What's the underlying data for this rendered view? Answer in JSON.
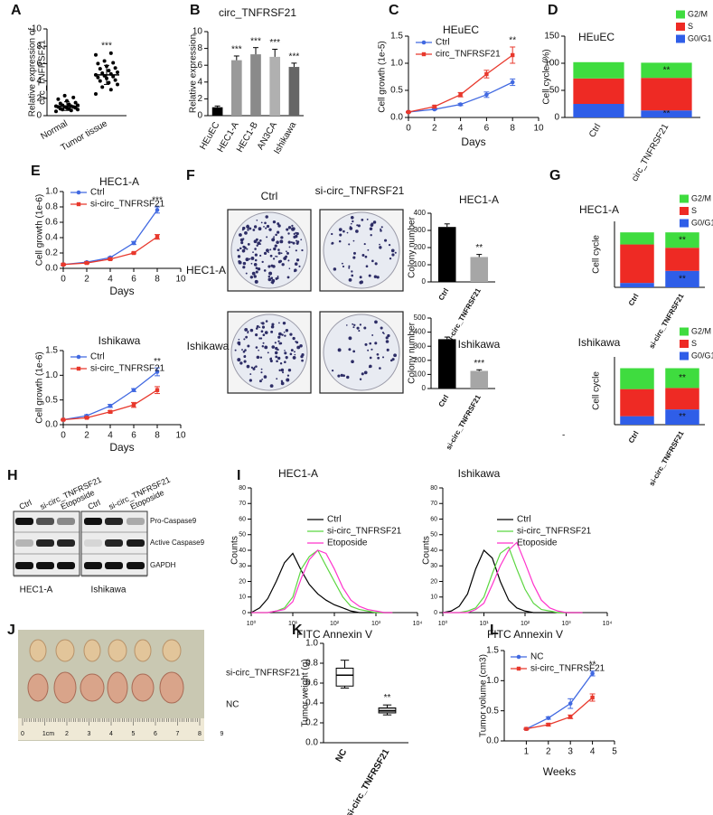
{
  "panel_labels": [
    "A",
    "B",
    "C",
    "D",
    "E",
    "F",
    "G",
    "H",
    "I",
    "J",
    "K",
    "L"
  ],
  "colony_assay": {
    "columns": [
      "Ctrl",
      "si-circ_TNFRSF21"
    ],
    "rows": [
      "HEC1-A",
      "Ishikawa"
    ]
  },
  "western_blot": {
    "lanes": [
      "Ctrl",
      "si-circ_TNFRSF21",
      "Etoposide"
    ],
    "proteins": [
      "Pro-Caspase9",
      "Active Caspase9",
      "GAPDH"
    ],
    "cell_lines": [
      "HEC1-A",
      "Ishikawa"
    ]
  },
  "xenograft": {
    "groups": [
      "si-circ_TNFRSF21",
      "NC"
    ],
    "ruler_labels": [
      "0",
      "1cm",
      "2",
      "3",
      "4",
      "5",
      "6",
      "7",
      "8",
      "9"
    ]
  },
  "cell_cycle_note": "-",
  "chart_data": [
    {
      "type": "strip",
      "categories": [
        "Normal",
        "Tumor tissue"
      ],
      "values": [
        [
          0.5,
          0.6,
          0.7,
          0.7,
          0.8,
          0.8,
          0.9,
          0.9,
          1.0,
          1.0,
          1.0,
          1.1,
          1.1,
          1.2,
          1.2,
          1.3,
          1.4,
          1.5,
          1.7,
          1.9,
          2.1,
          2.3
        ],
        [
          2.5,
          3.0,
          3.3,
          3.6,
          3.8,
          4.0,
          4.1,
          4.3,
          4.4,
          4.5,
          4.6,
          4.7,
          4.8,
          4.9,
          5.0,
          5.2,
          5.4,
          5.5,
          5.7,
          6.0,
          6.1,
          6.3,
          7.0,
          7.2
        ]
      ],
      "means": [
        1.1,
        4.7
      ],
      "sd": [
        0.5,
        1.1
      ],
      "color": "#000000",
      "significance": [
        null,
        "***"
      ],
      "ylabel": [
        "Relative expression of",
        "circ_TNFRSF21"
      ],
      "ylim": [
        0,
        10
      ],
      "yticks": [
        0,
        2,
        4,
        6,
        8,
        10
      ]
    },
    {
      "type": "bar",
      "title": "circ_TNFRSF21",
      "categories": [
        "HEuEC",
        "HEC1-A",
        "HEC1-B",
        "AN3CA",
        "Ishikawa"
      ],
      "values": [
        1.0,
        6.6,
        7.3,
        7.0,
        5.8
      ],
      "errors": [
        0.15,
        0.5,
        0.8,
        0.9,
        0.45
      ],
      "colors": [
        "#000000",
        "#9a9a9a",
        "#8a8a8a",
        "#b0b0b0",
        "#666666"
      ],
      "significance": [
        null,
        "***",
        "***",
        "***",
        "***"
      ],
      "ylabel": "Relative  expression",
      "ylim": [
        0,
        10
      ],
      "yticks": [
        0,
        2,
        4,
        6,
        8,
        10
      ]
    },
    {
      "type": "line",
      "title": "HEuEC",
      "x": [
        0,
        2,
        4,
        6,
        8
      ],
      "series": [
        {
          "name": "Ctrl",
          "color": "#4169e1",
          "marker": "circle",
          "values": [
            0.1,
            0.15,
            0.24,
            0.42,
            0.65
          ],
          "errors": [
            0.01,
            0.01,
            0.02,
            0.05,
            0.06
          ]
        },
        {
          "name": "circ_TNFRSF21",
          "color": "#e8382c",
          "marker": "square",
          "values": [
            0.1,
            0.2,
            0.42,
            0.8,
            1.15
          ],
          "errors": [
            0.01,
            0.02,
            0.04,
            0.07,
            0.15
          ]
        }
      ],
      "significance": "**",
      "xlabel": "Days",
      "ylabel": "Cell growth (1e-5)",
      "xlim": [
        0,
        10
      ],
      "xticks": [
        0,
        2,
        4,
        6,
        8,
        10
      ],
      "ylim": [
        0,
        1.5
      ],
      "yticks": [
        {
          "value": 0,
          "label": "0.0"
        },
        0.5,
        {
          "value": 1,
          "label": "1.0"
        },
        1.5
      ]
    },
    {
      "type": "stacked_bar",
      "title": "HEuEC",
      "categories": [
        "Ctrl",
        "circ_TNFRSF21"
      ],
      "series": [
        {
          "name": "G0/G1",
          "color": "#2f5ee8",
          "values": [
            25,
            13
          ],
          "significance": [
            null,
            "**"
          ]
        },
        {
          "name": "S",
          "color": "#ee2a24",
          "values": [
            47,
            60
          ]
        },
        {
          "name": "G2/M",
          "color": "#3fdc3f",
          "values": [
            30,
            28
          ],
          "significance": [
            null,
            "**"
          ]
        }
      ],
      "ylabel": "Cell cycle (%)",
      "ylim": [
        0,
        150
      ],
      "yticks": [
        0,
        50,
        100,
        150
      ]
    },
    {
      "type": "line",
      "title": "HEC1-A",
      "x": [
        0,
        2,
        4,
        6,
        8
      ],
      "series": [
        {
          "name": "Ctrl",
          "color": "#4169e1",
          "marker": "circle",
          "values": [
            0.05,
            0.08,
            0.14,
            0.33,
            0.76
          ],
          "errors": [
            0.01,
            0.01,
            0.01,
            0.02,
            0.04
          ]
        },
        {
          "name": "si-circ_TNFRSF21",
          "color": "#e8382c",
          "marker": "square",
          "values": [
            0.05,
            0.07,
            0.12,
            0.2,
            0.41
          ],
          "errors": [
            0.01,
            0.01,
            0.01,
            0.01,
            0.03
          ]
        }
      ],
      "significance": "***",
      "xlabel": "Days",
      "ylabel": "Cell growth (1e-6)",
      "xlim": [
        0,
        10
      ],
      "xticks": [
        0,
        2,
        4,
        6,
        8,
        10
      ],
      "ylim": [
        0,
        1
      ],
      "yticks": [
        {
          "value": 0,
          "label": "0.0"
        },
        0.2,
        0.4,
        0.6,
        0.8,
        {
          "value": 1,
          "label": "1.0"
        }
      ]
    },
    {
      "type": "line",
      "title": "Ishikawa",
      "x": [
        0,
        2,
        4,
        6,
        8
      ],
      "series": [
        {
          "name": "Ctrl",
          "color": "#4169e1",
          "marker": "circle",
          "values": [
            0.1,
            0.18,
            0.38,
            0.7,
            1.07
          ],
          "errors": [
            0.01,
            0.02,
            0.03,
            0.03,
            0.08
          ]
        },
        {
          "name": "si-circ_TNFRSF21",
          "color": "#e8382c",
          "marker": "square",
          "values": [
            0.1,
            0.14,
            0.26,
            0.4,
            0.7
          ],
          "errors": [
            0.01,
            0.01,
            0.02,
            0.05,
            0.07
          ]
        }
      ],
      "significance": "**",
      "xlabel": "Days",
      "ylabel": "Cell growth (1e-6)",
      "xlim": [
        0,
        10
      ],
      "xticks": [
        0,
        2,
        4,
        6,
        8,
        10
      ],
      "ylim": [
        0,
        1.5
      ],
      "yticks": [
        {
          "value": 0,
          "label": "0.0"
        },
        0.5,
        {
          "value": 1,
          "label": "1.0"
        },
        1.5
      ]
    },
    {
      "type": "bar",
      "title": "HEC1-A",
      "categories": [
        "Ctrl",
        "si-circ_TNFRSF21"
      ],
      "values": [
        320,
        145
      ],
      "errors": [
        18,
        15
      ],
      "colors": [
        "#000000",
        "#a6a6a6"
      ],
      "significance": [
        null,
        "**"
      ],
      "ylabel": "Colony number",
      "ylim": [
        0,
        400
      ],
      "yticks": [
        0,
        100,
        200,
        300,
        400
      ]
    },
    {
      "type": "bar",
      "title": "Ishikawa",
      "categories": [
        "Ctrl",
        "si-circ_TNFRSF21"
      ],
      "values": [
        350,
        125
      ],
      "errors": [
        15,
        8
      ],
      "colors": [
        "#000000",
        "#a6a6a6"
      ],
      "significance": [
        null,
        "***"
      ],
      "ylabel": "Colony number",
      "ylim": [
        0,
        500
      ],
      "yticks": [
        0,
        100,
        200,
        300,
        400,
        500
      ]
    },
    {
      "type": "stacked_bar",
      "title": "HEC1-A",
      "categories": [
        "Ctrl",
        "si-circ_TNFRSF21"
      ],
      "series": [
        {
          "name": "G0/G1",
          "color": "#2f5ee8",
          "values": [
            8,
            30
          ],
          "significance": [
            null,
            "**"
          ]
        },
        {
          "name": "S",
          "color": "#ee2a24",
          "values": [
            70,
            42
          ]
        },
        {
          "name": "G2/M",
          "color": "#3fdc3f",
          "values": [
            22,
            28
          ],
          "significance": [
            null,
            "**"
          ]
        }
      ],
      "ylabel": "Cell cycle",
      "ylim": [
        0,
        120
      ]
    },
    {
      "type": "stacked_bar",
      "title": "Ishikawa",
      "categories": [
        "Ctrl",
        "si-circ_TNFRSF21"
      ],
      "series": [
        {
          "name": "G0/G1",
          "color": "#2f5ee8",
          "values": [
            15,
            27
          ],
          "significance": [
            null,
            "**"
          ]
        },
        {
          "name": "S",
          "color": "#ee2a24",
          "values": [
            48,
            38
          ]
        },
        {
          "name": "G2/M",
          "color": "#3fdc3f",
          "values": [
            37,
            35
          ],
          "significance": [
            null,
            "**"
          ]
        }
      ],
      "ylabel": "Cell cycle",
      "ylim": [
        0,
        120
      ]
    },
    {
      "type": "line",
      "xscale": "log",
      "title": "HEC1-A",
      "x": [
        1,
        1.6,
        2.5,
        4,
        6.3,
        10,
        16,
        25,
        40,
        63,
        100,
        160,
        250,
        400,
        630,
        1000,
        1600,
        2500
      ],
      "series": [
        {
          "name": "Ctrl",
          "color": "#000000",
          "values": [
            0,
            3,
            9,
            20,
            32,
            38,
            27,
            18,
            12,
            8,
            5,
            3,
            1,
            0,
            0,
            0,
            0,
            0
          ]
        },
        {
          "name": "si-circ_TNFRSF21",
          "color": "#5bd640",
          "values": [
            0,
            0,
            0,
            1,
            3,
            10,
            28,
            36,
            40,
            30,
            20,
            10,
            4,
            2,
            1,
            0,
            0,
            0
          ]
        },
        {
          "name": "Etoposide",
          "color": "#ff33cc",
          "values": [
            0,
            0,
            0,
            1,
            2,
            7,
            22,
            34,
            40,
            38,
            28,
            16,
            8,
            4,
            2,
            1,
            0,
            0
          ]
        }
      ],
      "xlabel": "FITC Annexin V",
      "ylabel": "Counts",
      "xlim": [
        1,
        10000
      ],
      "xticks": [
        {
          "value": 1,
          "label": "10⁰"
        },
        {
          "value": 10,
          "label": "10¹"
        },
        {
          "value": 100,
          "label": "10²"
        },
        {
          "value": 1000,
          "label": "10³"
        },
        {
          "value": 10000,
          "label": "10⁴"
        }
      ],
      "ylim": [
        0,
        80
      ],
      "yticks": [
        0,
        10,
        20,
        30,
        40,
        50,
        60,
        70,
        80
      ]
    },
    {
      "type": "line",
      "xscale": "log",
      "title": "Ishikawa",
      "x": [
        1,
        1.6,
        2.5,
        4,
        6.3,
        10,
        16,
        25,
        40,
        63,
        100,
        160,
        250,
        400,
        630,
        1000,
        1600,
        2500
      ],
      "series": [
        {
          "name": "Ctrl",
          "color": "#000000",
          "values": [
            0,
            1,
            4,
            12,
            28,
            40,
            35,
            20,
            8,
            3,
            1,
            0,
            0,
            0,
            0,
            0,
            0,
            0
          ]
        },
        {
          "name": "si-circ_TNFRSF21",
          "color": "#5bd640",
          "values": [
            0,
            0,
            0,
            1,
            3,
            10,
            25,
            38,
            42,
            28,
            15,
            6,
            2,
            1,
            0,
            0,
            0,
            0
          ]
        },
        {
          "name": "Etoposide",
          "color": "#ff33cc",
          "values": [
            0,
            0,
            0,
            0,
            2,
            6,
            18,
            30,
            40,
            45,
            32,
            18,
            8,
            3,
            1,
            0,
            0,
            0
          ]
        }
      ],
      "xlabel": "FITC Annexin V",
      "ylabel": "Counts",
      "xlim": [
        1,
        10000
      ],
      "xticks": [
        {
          "value": 1,
          "label": "10⁰"
        },
        {
          "value": 10,
          "label": "10¹"
        },
        {
          "value": 100,
          "label": "10²"
        },
        {
          "value": 1000,
          "label": "10³"
        },
        {
          "value": 10000,
          "label": "10⁴"
        }
      ],
      "ylim": [
        0,
        80
      ],
      "yticks": [
        0,
        10,
        20,
        30,
        40,
        50,
        60,
        70,
        80
      ]
    },
    {
      "type": "box",
      "categories": [
        "NC",
        "si-circ_TNFRSF21"
      ],
      "boxes": [
        {
          "min": 0.55,
          "q1": 0.57,
          "median": 0.68,
          "q3": 0.75,
          "max": 0.83
        },
        {
          "min": 0.28,
          "q1": 0.3,
          "median": 0.32,
          "q3": 0.35,
          "max": 0.38
        }
      ],
      "colors": [
        "#ffffff",
        "#c0c0c0"
      ],
      "significance": [
        null,
        "**"
      ],
      "ylabel": "Tumor weight (g)",
      "ylim": [
        0,
        1
      ],
      "yticks": [
        {
          "value": 0,
          "label": "0.0"
        },
        0.2,
        0.4,
        0.6,
        0.8,
        {
          "value": 1,
          "label": "1.0"
        }
      ]
    },
    {
      "type": "line",
      "x": [
        1,
        2,
        3,
        4
      ],
      "series": [
        {
          "name": "NC",
          "color": "#4169e1",
          "marker": "circle",
          "values": [
            0.2,
            0.38,
            0.62,
            1.12
          ],
          "errors": [
            0.01,
            0.02,
            0.08,
            0.04
          ]
        },
        {
          "name": "si-circ_TNFRSF21",
          "color": "#e8382c",
          "marker": "square",
          "values": [
            0.2,
            0.27,
            0.4,
            0.72
          ],
          "errors": [
            0.01,
            0.02,
            0.03,
            0.06
          ]
        }
      ],
      "significance": "**",
      "xlabel": "Weeks",
      "ylabel": "Tumor volume (cm3)",
      "xlim": [
        0,
        5
      ],
      "xticks": [
        1,
        2,
        3,
        4,
        5
      ],
      "ylim": [
        0,
        1.5
      ],
      "yticks": [
        {
          "value": 0,
          "label": "0.0"
        },
        0.5,
        {
          "value": 1,
          "label": "1.0"
        },
        1.5
      ]
    }
  ]
}
